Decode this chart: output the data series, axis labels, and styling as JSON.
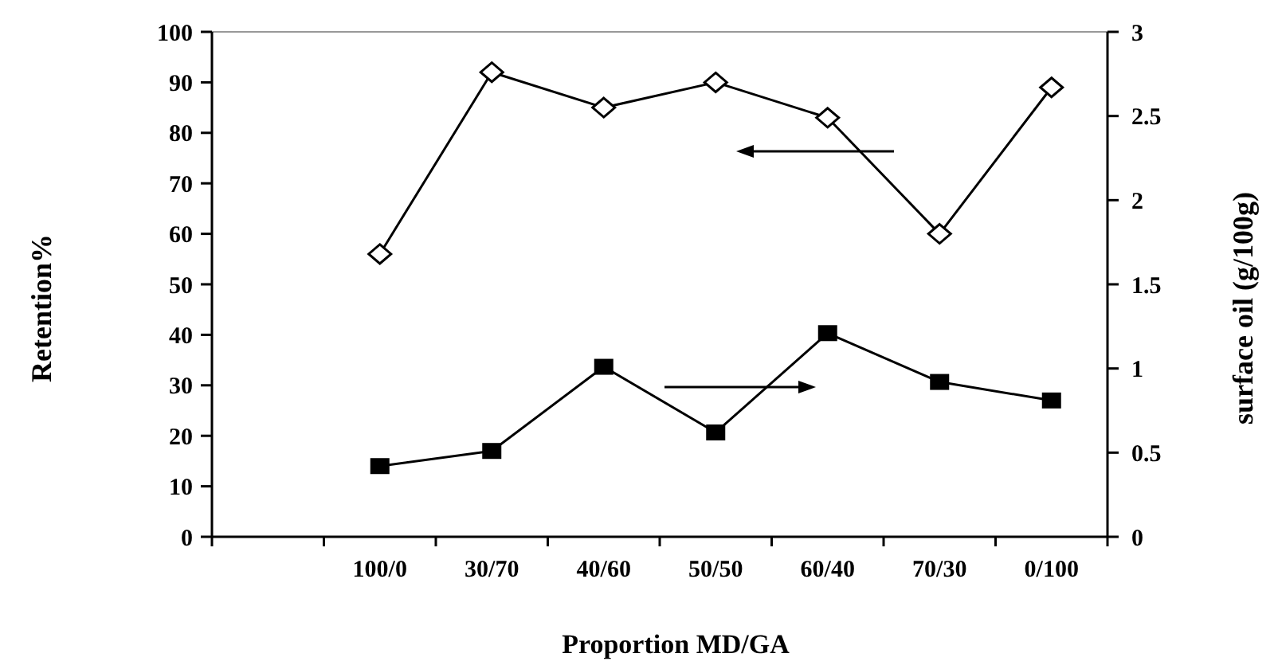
{
  "chart_data": {
    "type": "line",
    "xlabel": "Proportion MD/GA",
    "ylabel": "Retention%",
    "y2label": "surface oil (g/100g)",
    "categories": [
      null,
      "100/0",
      "30/70",
      "40/60",
      "50/50",
      "60/40",
      "70/30",
      "0/100"
    ],
    "series": [
      {
        "color": "#000000",
        "marker": "diamond",
        "values": [
          null,
          56,
          92,
          85,
          90,
          83,
          60,
          89
        ]
      },
      {
        "color": "#000000",
        "marker": "square",
        "axis": "y2",
        "values": [
          null,
          0.42,
          0.51,
          1.01,
          0.62,
          1.21,
          0.92,
          0.81
        ]
      }
    ],
    "ylim": [
      0,
      100
    ],
    "yticks": [
      0,
      10,
      20,
      30,
      40,
      50,
      60,
      70,
      80,
      90,
      100
    ],
    "y2lim": [
      0,
      3
    ],
    "y2ticks": [
      0,
      0.5,
      1,
      1.5,
      2,
      2.5,
      3
    ],
    "grid": false,
    "line_style": "solid"
  }
}
